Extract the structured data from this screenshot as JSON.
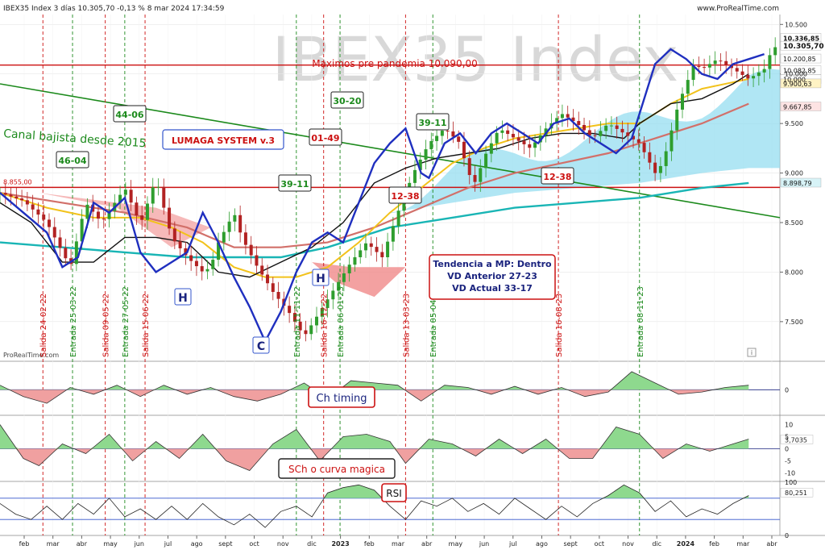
{
  "header": {
    "title": "IBEX35 Index 3 días 10.305,70 -0,13 % 8 mar 2024 17:34:59",
    "brand": "www.ProRealTime.com",
    "watermark": "IBEX35 Index",
    "source": "ProRealTime.com",
    "info_icon": "i"
  },
  "colors": {
    "price_up": "#2e9e2e",
    "price_down": "#b22222",
    "fast_ma": "#1f2fbf",
    "black_ma": "#111111",
    "yellow_ma": "#f2c21b",
    "brown_ma": "#d2706a",
    "teal_ma": "#19b5b5",
    "channel": "#1c8a1c",
    "horizontal": "#cc1111",
    "cloud_up": "#8fdcf0",
    "cloud_down": "#f08a8a",
    "osc_pos": "#8ed98e",
    "osc_neg": "#f0a0a0"
  },
  "chart_data": [
    {
      "type": "candlestick",
      "name": "price",
      "x_ticks": [
        "feb",
        "mar",
        "abr",
        "may",
        "jun",
        "jul",
        "ago",
        "sept",
        "oct",
        "nov",
        "dic",
        "2023",
        "feb",
        "mar",
        "abr",
        "may",
        "jun",
        "jul",
        "ago",
        "sept",
        "oct",
        "nov",
        "dic",
        "2024",
        "feb",
        "mar",
        "abr"
      ],
      "y_ticks": [
        10500,
        10000,
        9500,
        9000,
        8500,
        8000,
        7500
      ],
      "y_tick_labels": [
        "10.500",
        "10.000",
        "9.500",
        "9.000",
        "8.500",
        "8.000",
        "7.500"
      ],
      "ylim": [
        7100,
        10600
      ],
      "price_path": [
        [
          0,
          8800
        ],
        [
          3,
          8720
        ],
        [
          6,
          8500
        ],
        [
          8,
          8200
        ],
        [
          9,
          8050
        ],
        [
          11,
          8700
        ],
        [
          13,
          8500
        ],
        [
          16,
          8850
        ],
        [
          18,
          8480
        ],
        [
          20,
          8950
        ],
        [
          22,
          8350
        ],
        [
          24,
          8150
        ],
        [
          26,
          8000
        ],
        [
          27,
          8050
        ],
        [
          28,
          8300
        ],
        [
          30,
          8600
        ],
        [
          31,
          8350
        ],
        [
          33,
          8050
        ],
        [
          35,
          7800
        ],
        [
          37,
          7600
        ],
        [
          39,
          7350
        ],
        [
          41,
          7600
        ],
        [
          43,
          7850
        ],
        [
          45,
          8100
        ],
        [
          47,
          8300
        ],
        [
          49,
          8150
        ],
        [
          51,
          8600
        ],
        [
          53,
          9000
        ],
        [
          55,
          9300
        ],
        [
          57,
          9450
        ],
        [
          59,
          9300
        ],
        [
          60,
          9000
        ],
        [
          61,
          8900
        ],
        [
          62,
          9150
        ],
        [
          64,
          9450
        ],
        [
          66,
          9350
        ],
        [
          68,
          9250
        ],
        [
          70,
          9450
        ],
        [
          72,
          9600
        ],
        [
          74,
          9500
        ],
        [
          76,
          9350
        ],
        [
          78,
          9500
        ],
        [
          80,
          9400
        ],
        [
          82,
          9300
        ],
        [
          84,
          9000
        ],
        [
          85,
          9100
        ],
        [
          86,
          9400
        ],
        [
          87,
          9700
        ],
        [
          89,
          10100
        ],
        [
          90,
          10050
        ],
        [
          92,
          10150
        ],
        [
          94,
          10050
        ],
        [
          96,
          9950
        ],
        [
          98,
          10050
        ],
        [
          99,
          10250
        ],
        [
          100,
          10300
        ]
      ],
      "blue_ma": [
        [
          0,
          8800
        ],
        [
          3,
          8600
        ],
        [
          6,
          8400
        ],
        [
          8,
          8050
        ],
        [
          10,
          8150
        ],
        [
          12,
          8700
        ],
        [
          14,
          8600
        ],
        [
          16,
          8750
        ],
        [
          18,
          8200
        ],
        [
          20,
          8000
        ],
        [
          22,
          8100
        ],
        [
          24,
          8200
        ],
        [
          26,
          8600
        ],
        [
          28,
          8300
        ],
        [
          30,
          7950
        ],
        [
          32,
          7650
        ],
        [
          34,
          7300
        ],
        [
          36,
          7600
        ],
        [
          38,
          8000
        ],
        [
          40,
          8300
        ],
        [
          42,
          8400
        ],
        [
          44,
          8300
        ],
        [
          46,
          8700
        ],
        [
          48,
          9100
        ],
        [
          50,
          9300
        ],
        [
          52,
          9450
        ],
        [
          54,
          9000
        ],
        [
          55,
          8950
        ],
        [
          57,
          9300
        ],
        [
          59,
          9400
        ],
        [
          61,
          9200
        ],
        [
          63,
          9400
        ],
        [
          65,
          9500
        ],
        [
          67,
          9400
        ],
        [
          69,
          9300
        ],
        [
          71,
          9500
        ],
        [
          73,
          9550
        ],
        [
          75,
          9400
        ],
        [
          77,
          9300
        ],
        [
          79,
          9200
        ],
        [
          81,
          9350
        ],
        [
          82,
          9600
        ],
        [
          84,
          10100
        ],
        [
          86,
          10250
        ],
        [
          88,
          10150
        ],
        [
          90,
          10000
        ],
        [
          92,
          9950
        ],
        [
          94,
          10100
        ],
        [
          96,
          10150
        ],
        [
          98,
          10200
        ]
      ],
      "black_ma": [
        [
          0,
          8700
        ],
        [
          4,
          8500
        ],
        [
          8,
          8100
        ],
        [
          12,
          8100
        ],
        [
          16,
          8350
        ],
        [
          20,
          8350
        ],
        [
          24,
          8300
        ],
        [
          28,
          8000
        ],
        [
          32,
          7950
        ],
        [
          36,
          8100
        ],
        [
          40,
          8250
        ],
        [
          44,
          8500
        ],
        [
          48,
          8900
        ],
        [
          52,
          9050
        ],
        [
          56,
          9150
        ],
        [
          60,
          9200
        ],
        [
          64,
          9250
        ],
        [
          68,
          9350
        ],
        [
          72,
          9400
        ],
        [
          76,
          9400
        ],
        [
          80,
          9350
        ],
        [
          82,
          9500
        ],
        [
          86,
          9700
        ],
        [
          90,
          9750
        ],
        [
          94,
          9900
        ],
        [
          96,
          10000
        ]
      ],
      "yellow_ma": [
        [
          0,
          8800
        ],
        [
          6,
          8650
        ],
        [
          12,
          8550
        ],
        [
          18,
          8550
        ],
        [
          22,
          8450
        ],
        [
          26,
          8300
        ],
        [
          30,
          8050
        ],
        [
          34,
          7950
        ],
        [
          38,
          7950
        ],
        [
          42,
          8050
        ],
        [
          46,
          8300
        ],
        [
          50,
          8600
        ],
        [
          54,
          8850
        ],
        [
          58,
          9100
        ],
        [
          62,
          9250
        ],
        [
          66,
          9350
        ],
        [
          70,
          9400
        ],
        [
          74,
          9450
        ],
        [
          78,
          9500
        ],
        [
          82,
          9500
        ],
        [
          86,
          9700
        ],
        [
          90,
          9850
        ],
        [
          96,
          9950
        ]
      ],
      "brown_ma": [
        [
          0,
          8800
        ],
        [
          8,
          8700
        ],
        [
          16,
          8600
        ],
        [
          24,
          8450
        ],
        [
          30,
          8250
        ],
        [
          36,
          8250
        ],
        [
          42,
          8300
        ],
        [
          48,
          8450
        ],
        [
          54,
          8650
        ],
        [
          60,
          8850
        ],
        [
          66,
          9000
        ],
        [
          72,
          9100
        ],
        [
          78,
          9200
        ],
        [
          84,
          9350
        ],
        [
          90,
          9500
        ],
        [
          96,
          9700
        ]
      ],
      "teal_ma": [
        [
          0,
          8300
        ],
        [
          8,
          8250
        ],
        [
          16,
          8200
        ],
        [
          24,
          8150
        ],
        [
          30,
          8150
        ],
        [
          36,
          8150
        ],
        [
          42,
          8250
        ],
        [
          50,
          8450
        ],
        [
          58,
          8550
        ],
        [
          66,
          8650
        ],
        [
          74,
          8700
        ],
        [
          82,
          8750
        ],
        [
          90,
          8850
        ],
        [
          96,
          8900
        ]
      ],
      "price_labels": [
        "10.336,85",
        "10.305,70",
        "10.200,85",
        "10.082,85",
        "10.000",
        "9.900,63",
        "9.667,85",
        "8.898,79",
        "8.855,00"
      ],
      "annotations": [
        "Maximos pre pandemia 10.090,00",
        "Canal bajista desde 2015",
        "LUMAGA SYSTEM v.3",
        "Tendencia a MP: Dentro",
        "VD Anterior 27-23",
        "VD Actual 33-17",
        "46-04",
        "44-06",
        "39-11",
        "01-49",
        "30-20",
        "39-11",
        "12-38",
        "12-38",
        "H",
        "H",
        "C"
      ],
      "vertical_labels": [
        "Salida 24-02-22",
        "Entrada 25-03-22",
        "Salida 09-05-22",
        "Entrada 27-05-22",
        "Salida 15-06-22",
        "Entrada 11-11-22",
        "Salida 16-12-22",
        "Entrada 06-01-23",
        "Salida 13-03-23",
        "Entrada 05-04-23",
        "Salida 16-08-23",
        "Entrada 08-11-23"
      ]
    },
    {
      "type": "area",
      "name": "Ch timing",
      "zero_label": "0",
      "values": [
        [
          0,
          0.2
        ],
        [
          3,
          -0.3
        ],
        [
          6,
          -0.6
        ],
        [
          9,
          0.1
        ],
        [
          12,
          -0.2
        ],
        [
          15,
          0.2
        ],
        [
          18,
          -0.3
        ],
        [
          21,
          0.2
        ],
        [
          24,
          -0.2
        ],
        [
          27,
          0.1
        ],
        [
          30,
          -0.3
        ],
        [
          33,
          -0.5
        ],
        [
          36,
          -0.2
        ],
        [
          39,
          0.3
        ],
        [
          42,
          -0.4
        ],
        [
          45,
          0.4
        ],
        [
          48,
          0.3
        ],
        [
          51,
          0.2
        ],
        [
          54,
          -0.5
        ],
        [
          57,
          0.2
        ],
        [
          60,
          0.1
        ],
        [
          63,
          -0.2
        ],
        [
          66,
          0.15
        ],
        [
          69,
          -0.2
        ],
        [
          72,
          0.1
        ],
        [
          75,
          -0.3
        ],
        [
          78,
          -0.1
        ],
        [
          81,
          0.8
        ],
        [
          84,
          0.3
        ],
        [
          87,
          -0.2
        ],
        [
          90,
          -0.1
        ],
        [
          93,
          0.1
        ],
        [
          96,
          0.2
        ]
      ]
    },
    {
      "type": "area",
      "name": "SCh o curva magica",
      "y_tick_labels": [
        "10",
        "5",
        "3,7035",
        "0",
        "-5",
        "-10"
      ],
      "values": [
        [
          0,
          1
        ],
        [
          3,
          -0.4
        ],
        [
          5,
          -0.7
        ],
        [
          8,
          0.2
        ],
        [
          11,
          -0.2
        ],
        [
          14,
          0.6
        ],
        [
          17,
          -0.5
        ],
        [
          20,
          0.3
        ],
        [
          23,
          -0.4
        ],
        [
          26,
          0.6
        ],
        [
          29,
          -0.5
        ],
        [
          32,
          -0.9
        ],
        [
          35,
          0.2
        ],
        [
          38,
          0.8
        ],
        [
          41,
          -0.5
        ],
        [
          44,
          0.5
        ],
        [
          47,
          0.6
        ],
        [
          50,
          0.3
        ],
        [
          52,
          -0.6
        ],
        [
          55,
          0.4
        ],
        [
          58,
          0.2
        ],
        [
          61,
          -0.3
        ],
        [
          64,
          0.4
        ],
        [
          67,
          -0.2
        ],
        [
          70,
          0.4
        ],
        [
          73,
          -0.4
        ],
        [
          76,
          -0.4
        ],
        [
          79,
          0.9
        ],
        [
          82,
          0.6
        ],
        [
          85,
          -0.4
        ],
        [
          88,
          0.2
        ],
        [
          91,
          -0.1
        ],
        [
          94,
          0.2
        ],
        [
          96,
          0.4
        ]
      ]
    },
    {
      "type": "line",
      "name": "RSI",
      "y_tick_labels": [
        "100",
        "80,251",
        "0"
      ],
      "values": [
        [
          0,
          0.6
        ],
        [
          2,
          0.4
        ],
        [
          4,
          0.3
        ],
        [
          6,
          0.55
        ],
        [
          8,
          0.3
        ],
        [
          10,
          0.6
        ],
        [
          12,
          0.4
        ],
        [
          14,
          0.7
        ],
        [
          16,
          0.35
        ],
        [
          18,
          0.5
        ],
        [
          20,
          0.3
        ],
        [
          22,
          0.55
        ],
        [
          24,
          0.3
        ],
        [
          26,
          0.6
        ],
        [
          28,
          0.35
        ],
        [
          30,
          0.2
        ],
        [
          32,
          0.4
        ],
        [
          34,
          0.15
        ],
        [
          36,
          0.45
        ],
        [
          38,
          0.55
        ],
        [
          40,
          0.35
        ],
        [
          42,
          0.8
        ],
        [
          44,
          0.9
        ],
        [
          46,
          0.95
        ],
        [
          48,
          0.85
        ],
        [
          50,
          0.55
        ],
        [
          52,
          0.3
        ],
        [
          54,
          0.65
        ],
        [
          56,
          0.55
        ],
        [
          58,
          0.7
        ],
        [
          60,
          0.45
        ],
        [
          62,
          0.6
        ],
        [
          64,
          0.4
        ],
        [
          66,
          0.7
        ],
        [
          68,
          0.5
        ],
        [
          70,
          0.3
        ],
        [
          72,
          0.55
        ],
        [
          74,
          0.35
        ],
        [
          76,
          0.6
        ],
        [
          78,
          0.75
        ],
        [
          80,
          0.95
        ],
        [
          82,
          0.8
        ],
        [
          84,
          0.45
        ],
        [
          86,
          0.65
        ],
        [
          88,
          0.35
        ],
        [
          90,
          0.5
        ],
        [
          92,
          0.4
        ],
        [
          94,
          0.6
        ],
        [
          96,
          0.75
        ]
      ]
    }
  ]
}
